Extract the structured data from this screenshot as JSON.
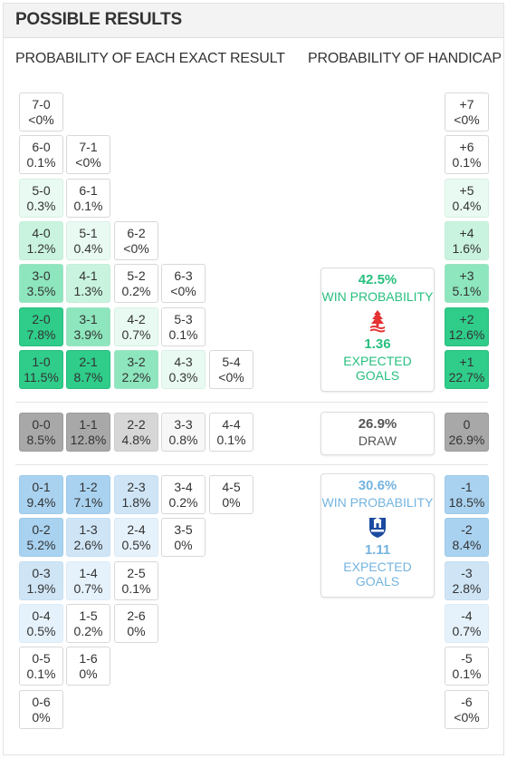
{
  "title": "POSSIBLE RESULTS",
  "exact_header": "PROBABILITY OF EACH EXACT RESULT",
  "handicap_header": "PROBABILITY OF HANDICAP",
  "colors": {
    "home_strong": "#2fcc8a",
    "home_mid": "#8de6bd",
    "home_light": "#c9f3df",
    "home_faint": "#e9faf2",
    "draw_strong": "#a8a8a8",
    "draw_mid": "#d6d6d6",
    "draw_light": "#ececec",
    "away_strong": "#a9d2f0",
    "away_mid": "#cfe5f6",
    "away_light": "#e6f2fb",
    "home_text": "#27bf7e",
    "away_text": "#74b4df"
  },
  "home_scores": [
    [
      {
        "score": "7-0",
        "p": "<0%"
      }
    ],
    [
      {
        "score": "6-0",
        "p": "0.1%"
      },
      {
        "score": "7-1",
        "p": "<0%"
      }
    ],
    [
      {
        "score": "5-0",
        "p": "0.3%"
      },
      {
        "score": "6-1",
        "p": "0.1%"
      }
    ],
    [
      {
        "score": "4-0",
        "p": "1.2%"
      },
      {
        "score": "5-1",
        "p": "0.4%"
      },
      {
        "score": "6-2",
        "p": "<0%"
      }
    ],
    [
      {
        "score": "3-0",
        "p": "3.5%"
      },
      {
        "score": "4-1",
        "p": "1.3%"
      },
      {
        "score": "5-2",
        "p": "0.2%"
      },
      {
        "score": "6-3",
        "p": "<0%"
      }
    ],
    [
      {
        "score": "2-0",
        "p": "7.8%"
      },
      {
        "score": "3-1",
        "p": "3.9%"
      },
      {
        "score": "4-2",
        "p": "0.7%"
      },
      {
        "score": "5-3",
        "p": "0.1%"
      }
    ],
    [
      {
        "score": "1-0",
        "p": "11.5%"
      },
      {
        "score": "2-1",
        "p": "8.7%"
      },
      {
        "score": "3-2",
        "p": "2.2%"
      },
      {
        "score": "4-3",
        "p": "0.3%"
      },
      {
        "score": "5-4",
        "p": "<0%"
      }
    ]
  ],
  "draw_scores": [
    [
      {
        "score": "0-0",
        "p": "8.5%"
      },
      {
        "score": "1-1",
        "p": "12.8%"
      },
      {
        "score": "2-2",
        "p": "4.8%"
      },
      {
        "score": "3-3",
        "p": "0.8%"
      },
      {
        "score": "4-4",
        "p": "0.1%"
      }
    ]
  ],
  "away_scores": [
    [
      {
        "score": "0-1",
        "p": "9.4%"
      },
      {
        "score": "1-2",
        "p": "7.1%"
      },
      {
        "score": "2-3",
        "p": "1.8%"
      },
      {
        "score": "3-4",
        "p": "0.2%"
      },
      {
        "score": "4-5",
        "p": "0%"
      }
    ],
    [
      {
        "score": "0-2",
        "p": "5.2%"
      },
      {
        "score": "1-3",
        "p": "2.6%"
      },
      {
        "score": "2-4",
        "p": "0.5%"
      },
      {
        "score": "3-5",
        "p": "0%"
      }
    ],
    [
      {
        "score": "0-3",
        "p": "1.9%"
      },
      {
        "score": "1-4",
        "p": "0.7%"
      },
      {
        "score": "2-5",
        "p": "0.1%"
      }
    ],
    [
      {
        "score": "0-4",
        "p": "0.5%"
      },
      {
        "score": "1-5",
        "p": "0.2%"
      },
      {
        "score": "2-6",
        "p": "0%"
      }
    ],
    [
      {
        "score": "0-5",
        "p": "0.1%"
      },
      {
        "score": "1-6",
        "p": "0%"
      }
    ],
    [
      {
        "score": "0-6",
        "p": "0%"
      }
    ]
  ],
  "handicap_home": [
    {
      "label": "+7",
      "p": "<0%"
    },
    {
      "label": "+6",
      "p": "0.1%"
    },
    {
      "label": "+5",
      "p": "0.4%"
    },
    {
      "label": "+4",
      "p": "1.6%"
    },
    {
      "label": "+3",
      "p": "5.1%"
    },
    {
      "label": "+2",
      "p": "12.6%"
    },
    {
      "label": "+1",
      "p": "22.7%"
    }
  ],
  "handicap_draw": [
    {
      "label": "0",
      "p": "26.9%"
    }
  ],
  "handicap_away": [
    {
      "label": "-1",
      "p": "18.5%"
    },
    {
      "label": "-2",
      "p": "8.4%"
    },
    {
      "label": "-3",
      "p": "2.8%"
    },
    {
      "label": "-4",
      "p": "0.7%"
    },
    {
      "label": "-5",
      "p": "0.1%"
    },
    {
      "label": "-6",
      "p": "<0%"
    }
  ],
  "home_card": {
    "win_pct": "42.5%",
    "win_label": "WIN PROBABILITY",
    "xg": "1.36",
    "xg_label": "EXPECTED GOALS",
    "crest": "nottingham-forest-crest-icon"
  },
  "draw_card": {
    "pct": "26.9%",
    "label": "DRAW"
  },
  "away_card": {
    "win_pct": "30.6%",
    "win_label": "WIN PROBABILITY",
    "xg": "1.11",
    "xg_label": "EXPECTED GOALS",
    "crest": "everton-crest-icon"
  }
}
